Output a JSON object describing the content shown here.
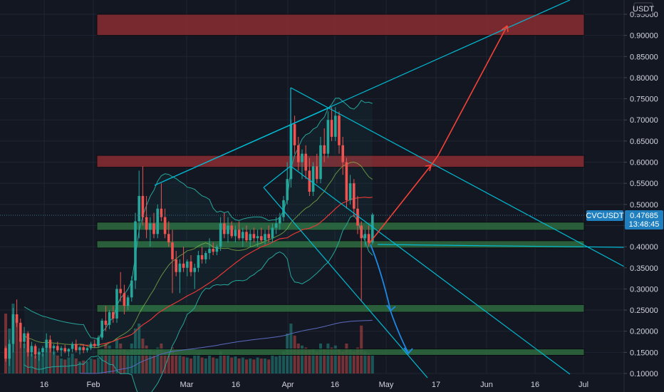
{
  "chart_data": {
    "type": "candlestick",
    "currency": "USDT",
    "symbol_tag": "CVCUSDT",
    "last_price": "0.47685",
    "countdown": "13:48:45",
    "y_ticks": [
      "0.95000",
      "0.90000",
      "0.85000",
      "0.80000",
      "0.75000",
      "0.70000",
      "0.65000",
      "0.60000",
      "0.55000",
      "0.50000",
      "0.45000",
      "0.40000",
      "0.35000",
      "0.30000",
      "0.25000",
      "0.20000",
      "0.15000",
      "0.10000"
    ],
    "x_ticks": [
      "16",
      "Feb",
      "Mar",
      "16",
      "Apr",
      "16",
      "May",
      "17",
      "Jun",
      "16",
      "Jul"
    ],
    "ylim": [
      0.09,
      0.975
    ],
    "colors": {
      "background": "#131722",
      "grid": "#1f2533",
      "up": "#26a69a",
      "down": "#ef5350",
      "trendline": "#00bcd4",
      "resistance_zone": "#8b2d33",
      "support_zone": "#2f6b3e",
      "forecast_up": "#f44336",
      "forecast_down": "#1e88e5",
      "ma_long": "#e53935",
      "ma_200": "#5c6bc0",
      "bollinger": "#26a69a"
    },
    "zones": [
      {
        "kind": "resistance",
        "low": 0.9,
        "high": 0.95
      },
      {
        "kind": "resistance",
        "low": 0.588,
        "high": 0.616
      },
      {
        "kind": "support",
        "low": 0.439,
        "high": 0.458
      },
      {
        "kind": "support",
        "low": 0.397,
        "high": 0.414
      },
      {
        "kind": "support",
        "low": 0.245,
        "high": 0.263
      },
      {
        "kind": "support",
        "low": 0.143,
        "high": 0.158
      }
    ],
    "candles": [
      [
        0.16,
        0.165,
        0.128,
        0.135
      ],
      [
        0.135,
        0.18,
        0.118,
        0.17
      ],
      [
        0.17,
        0.255,
        0.15,
        0.24
      ],
      [
        0.24,
        0.275,
        0.21,
        0.22
      ],
      [
        0.22,
        0.23,
        0.16,
        0.175
      ],
      [
        0.175,
        0.21,
        0.16,
        0.195
      ],
      [
        0.195,
        0.2,
        0.14,
        0.15
      ],
      [
        0.15,
        0.175,
        0.14,
        0.165
      ],
      [
        0.165,
        0.17,
        0.135,
        0.145
      ],
      [
        0.145,
        0.16,
        0.13,
        0.15
      ],
      [
        0.15,
        0.165,
        0.14,
        0.16
      ],
      [
        0.16,
        0.195,
        0.15,
        0.18
      ],
      [
        0.18,
        0.19,
        0.15,
        0.16
      ],
      [
        0.16,
        0.17,
        0.145,
        0.165
      ],
      [
        0.165,
        0.175,
        0.15,
        0.155
      ],
      [
        0.155,
        0.165,
        0.14,
        0.16
      ],
      [
        0.16,
        0.168,
        0.148,
        0.152
      ],
      [
        0.152,
        0.16,
        0.14,
        0.158
      ],
      [
        0.158,
        0.175,
        0.15,
        0.17
      ],
      [
        0.17,
        0.18,
        0.15,
        0.155
      ],
      [
        0.155,
        0.165,
        0.145,
        0.162
      ],
      [
        0.162,
        0.168,
        0.148,
        0.155
      ],
      [
        0.155,
        0.162,
        0.15,
        0.16
      ],
      [
        0.16,
        0.175,
        0.155,
        0.17
      ],
      [
        0.17,
        0.18,
        0.16,
        0.165
      ],
      [
        0.165,
        0.19,
        0.16,
        0.185
      ],
      [
        0.185,
        0.23,
        0.18,
        0.225
      ],
      [
        0.225,
        0.26,
        0.2,
        0.215
      ],
      [
        0.215,
        0.25,
        0.205,
        0.245
      ],
      [
        0.245,
        0.26,
        0.22,
        0.23
      ],
      [
        0.23,
        0.31,
        0.22,
        0.3
      ],
      [
        0.3,
        0.34,
        0.27,
        0.29
      ],
      [
        0.29,
        0.31,
        0.24,
        0.26
      ],
      [
        0.26,
        0.285,
        0.25,
        0.28
      ],
      [
        0.28,
        0.33,
        0.27,
        0.32
      ],
      [
        0.32,
        0.48,
        0.3,
        0.46
      ],
      [
        0.46,
        0.58,
        0.42,
        0.52
      ],
      [
        0.52,
        0.59,
        0.45,
        0.47
      ],
      [
        0.47,
        0.52,
        0.42,
        0.44
      ],
      [
        0.44,
        0.47,
        0.4,
        0.455
      ],
      [
        0.455,
        0.48,
        0.42,
        0.43
      ],
      [
        0.43,
        0.5,
        0.42,
        0.49
      ],
      [
        0.49,
        0.55,
        0.46,
        0.47
      ],
      [
        0.47,
        0.49,
        0.42,
        0.43
      ],
      [
        0.43,
        0.46,
        0.4,
        0.41
      ],
      [
        0.41,
        0.44,
        0.29,
        0.37
      ],
      [
        0.37,
        0.39,
        0.33,
        0.34
      ],
      [
        0.34,
        0.37,
        0.29,
        0.36
      ],
      [
        0.36,
        0.4,
        0.34,
        0.35
      ],
      [
        0.35,
        0.37,
        0.33,
        0.365
      ],
      [
        0.365,
        0.38,
        0.33,
        0.34
      ],
      [
        0.34,
        0.36,
        0.3,
        0.35
      ],
      [
        0.35,
        0.39,
        0.34,
        0.38
      ],
      [
        0.38,
        0.4,
        0.36,
        0.37
      ],
      [
        0.37,
        0.39,
        0.36,
        0.385
      ],
      [
        0.385,
        0.42,
        0.37,
        0.395
      ],
      [
        0.395,
        0.41,
        0.38,
        0.388
      ],
      [
        0.388,
        0.405,
        0.38,
        0.4
      ],
      [
        0.4,
        0.47,
        0.39,
        0.455
      ],
      [
        0.455,
        0.48,
        0.42,
        0.43
      ],
      [
        0.43,
        0.47,
        0.41,
        0.45
      ],
      [
        0.45,
        0.46,
        0.42,
        0.425
      ],
      [
        0.425,
        0.45,
        0.41,
        0.44
      ],
      [
        0.44,
        0.46,
        0.415,
        0.42
      ],
      [
        0.42,
        0.445,
        0.4,
        0.435
      ],
      [
        0.435,
        0.45,
        0.41,
        0.415
      ],
      [
        0.415,
        0.44,
        0.4,
        0.43
      ],
      [
        0.43,
        0.445,
        0.41,
        0.42
      ],
      [
        0.42,
        0.44,
        0.4,
        0.425
      ],
      [
        0.425,
        0.445,
        0.41,
        0.415
      ],
      [
        0.415,
        0.44,
        0.405,
        0.43
      ],
      [
        0.43,
        0.45,
        0.41,
        0.42
      ],
      [
        0.42,
        0.455,
        0.41,
        0.445
      ],
      [
        0.445,
        0.47,
        0.43,
        0.455
      ],
      [
        0.455,
        0.48,
        0.44,
        0.47
      ],
      [
        0.47,
        0.52,
        0.46,
        0.51
      ],
      [
        0.51,
        0.6,
        0.5,
        0.56
      ],
      [
        0.56,
        0.7,
        0.54,
        0.69
      ],
      [
        0.69,
        0.71,
        0.62,
        0.64
      ],
      [
        0.64,
        0.66,
        0.58,
        0.6
      ],
      [
        0.6,
        0.63,
        0.56,
        0.62
      ],
      [
        0.62,
        0.64,
        0.56,
        0.58
      ],
      [
        0.58,
        0.61,
        0.52,
        0.53
      ],
      [
        0.53,
        0.6,
        0.52,
        0.59
      ],
      [
        0.59,
        0.62,
        0.55,
        0.56
      ],
      [
        0.56,
        0.66,
        0.55,
        0.64
      ],
      [
        0.64,
        0.68,
        0.6,
        0.62
      ],
      [
        0.62,
        0.72,
        0.61,
        0.7
      ],
      [
        0.7,
        0.73,
        0.65,
        0.66
      ],
      [
        0.66,
        0.73,
        0.65,
        0.71
      ],
      [
        0.71,
        0.72,
        0.62,
        0.64
      ],
      [
        0.64,
        0.66,
        0.57,
        0.6
      ],
      [
        0.6,
        0.61,
        0.49,
        0.51
      ],
      [
        0.51,
        0.57,
        0.5,
        0.55
      ],
      [
        0.55,
        0.56,
        0.47,
        0.49
      ],
      [
        0.49,
        0.52,
        0.43,
        0.45
      ],
      [
        0.45,
        0.46,
        0.27,
        0.42
      ],
      [
        0.42,
        0.44,
        0.4,
        0.43
      ],
      [
        0.43,
        0.45,
        0.4,
        0.41
      ],
      [
        0.41,
        0.48,
        0.405,
        0.476
      ]
    ],
    "volumes": [
      0.6,
      0.45,
      0.7,
      0.55,
      0.35,
      0.3,
      0.25,
      0.2,
      0.18,
      0.22,
      0.2,
      0.25,
      0.3,
      0.22,
      0.18,
      0.15,
      0.14,
      0.16,
      0.2,
      0.15,
      0.12,
      0.13,
      0.12,
      0.15,
      0.14,
      0.16,
      0.25,
      0.3,
      0.28,
      0.24,
      0.35,
      0.3,
      0.25,
      0.22,
      0.3,
      0.45,
      0.5,
      0.35,
      0.28,
      0.24,
      0.22,
      0.26,
      0.3,
      0.22,
      0.2,
      0.26,
      0.2,
      0.18,
      0.17,
      0.16,
      0.15,
      0.18,
      0.2,
      0.16,
      0.15,
      0.18,
      0.16,
      0.15,
      0.22,
      0.18,
      0.18,
      0.16,
      0.17,
      0.15,
      0.16,
      0.14,
      0.15,
      0.14,
      0.16,
      0.15,
      0.15,
      0.14,
      0.18,
      0.17,
      0.18,
      0.22,
      0.4,
      0.5,
      0.38,
      0.3,
      0.28,
      0.26,
      0.24,
      0.25,
      0.22,
      0.3,
      0.25,
      0.3,
      0.26,
      0.28,
      0.25,
      0.22,
      0.3,
      0.24,
      0.22,
      0.26,
      0.48,
      0.22,
      0.2,
      0.18
    ]
  }
}
